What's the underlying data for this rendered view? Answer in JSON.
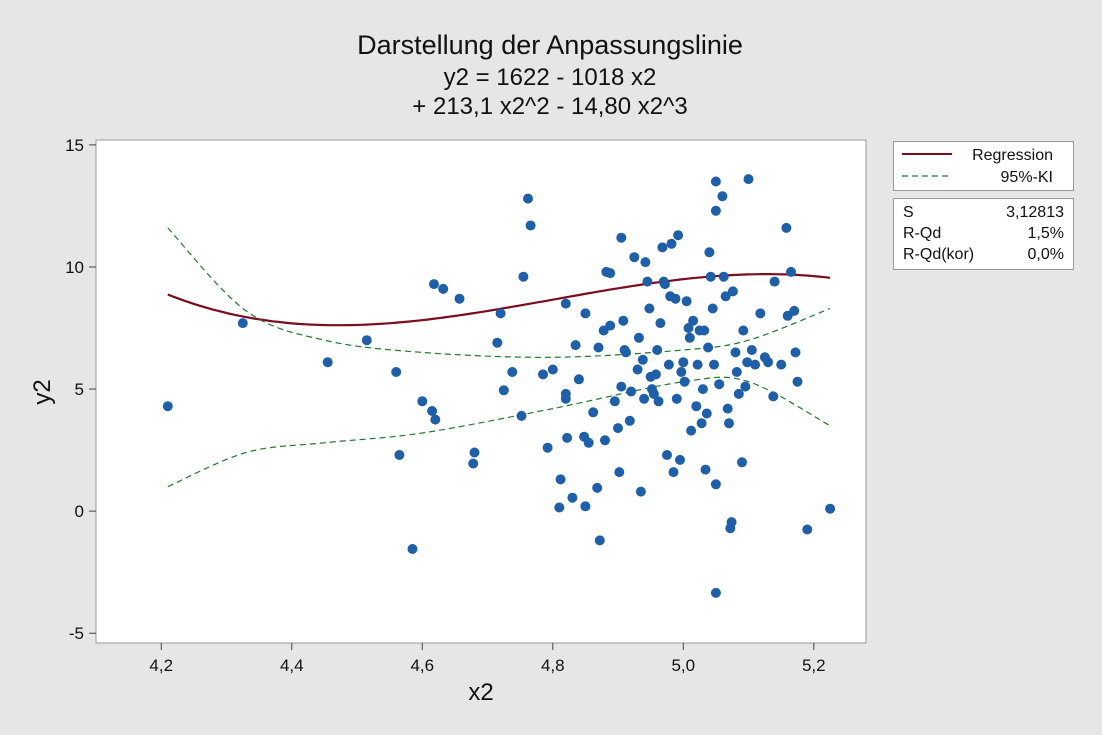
{
  "chart_data": {
    "type": "scatter",
    "title": "Darstellung der Anpassungslinie",
    "subtitle_lines": [
      "y2 = 1622 - 1018 x2",
      "+ 213,1 x2^2 - 14,80 x2^3"
    ],
    "xlabel": "x2",
    "ylabel": "y2",
    "xlim": [
      4.1,
      5.28
    ],
    "ylim": [
      -5.4,
      15.2
    ],
    "xticks": [
      4.2,
      4.4,
      4.6,
      4.8,
      5.0,
      5.2
    ],
    "xtick_labels": [
      "4,2",
      "4,4",
      "4,6",
      "4,8",
      "5,0",
      "5,2"
    ],
    "yticks": [
      -5,
      0,
      5,
      10,
      15
    ],
    "ytick_labels": [
      "-5",
      "0",
      "5",
      "10",
      "15"
    ],
    "grid": false,
    "legend_position": "right-top",
    "regression": {
      "name": "Regression",
      "color": "#7a0d1e",
      "coefficients": [
        1622,
        -1018,
        213.1,
        -14.8
      ],
      "x_range": [
        4.21,
        5.225
      ]
    },
    "confidence_interval": {
      "name": "95%-KI",
      "color": "#1f7a2e",
      "upper": [
        [
          4.21,
          11.6
        ],
        [
          4.33,
          8.2
        ],
        [
          4.45,
          7.0
        ],
        [
          4.6,
          6.5
        ],
        [
          4.8,
          6.3
        ],
        [
          5.0,
          6.6
        ],
        [
          5.1,
          7.0
        ],
        [
          5.225,
          8.3
        ]
      ],
      "lower": [
        [
          4.21,
          1.0
        ],
        [
          4.33,
          2.4
        ],
        [
          4.45,
          2.8
        ],
        [
          4.6,
          3.2
        ],
        [
          4.8,
          4.2
        ],
        [
          5.0,
          5.3
        ],
        [
          5.1,
          5.3
        ],
        [
          5.225,
          3.5
        ]
      ]
    },
    "marker_color": "#1f5fa8",
    "points": [
      [
        4.21,
        4.3
      ],
      [
        4.325,
        7.7
      ],
      [
        4.455,
        6.1
      ],
      [
        4.515,
        7.0
      ],
      [
        4.565,
        2.3
      ],
      [
        4.56,
        5.7
      ],
      [
        4.585,
        -1.55
      ],
      [
        4.6,
        4.5
      ],
      [
        4.615,
        4.1
      ],
      [
        4.618,
        9.3
      ],
      [
        4.62,
        3.75
      ],
      [
        4.632,
        9.1
      ],
      [
        4.657,
        8.7
      ],
      [
        4.68,
        2.4
      ],
      [
        4.678,
        1.95
      ],
      [
        4.715,
        6.9
      ],
      [
        4.72,
        8.1
      ],
      [
        4.725,
        4.95
      ],
      [
        4.738,
        5.7
      ],
      [
        4.752,
        3.9
      ],
      [
        4.755,
        9.6
      ],
      [
        4.762,
        12.8
      ],
      [
        4.766,
        11.7
      ],
      [
        4.785,
        5.6
      ],
      [
        4.792,
        2.6
      ],
      [
        4.8,
        5.8
      ],
      [
        4.81,
        0.15
      ],
      [
        4.812,
        1.3
      ],
      [
        4.82,
        8.5
      ],
      [
        4.82,
        4.8
      ],
      [
        4.82,
        4.6
      ],
      [
        4.822,
        3.0
      ],
      [
        4.83,
        0.55
      ],
      [
        4.835,
        6.8
      ],
      [
        4.84,
        5.4
      ],
      [
        4.848,
        3.05
      ],
      [
        4.85,
        8.1
      ],
      [
        4.85,
        0.2
      ],
      [
        4.855,
        2.8
      ],
      [
        4.862,
        4.05
      ],
      [
        4.868,
        0.95
      ],
      [
        4.87,
        6.7
      ],
      [
        4.872,
        -1.2
      ],
      [
        4.878,
        7.4
      ],
      [
        4.88,
        2.9
      ],
      [
        4.882,
        9.8
      ],
      [
        4.888,
        9.75
      ],
      [
        4.888,
        7.6
      ],
      [
        4.895,
        4.5
      ],
      [
        4.9,
        3.4
      ],
      [
        4.902,
        1.6
      ],
      [
        4.905,
        11.2
      ],
      [
        4.905,
        5.1
      ],
      [
        4.908,
        7.8
      ],
      [
        4.91,
        6.6
      ],
      [
        4.912,
        6.5
      ],
      [
        4.918,
        3.7
      ],
      [
        4.92,
        4.9
      ],
      [
        4.925,
        10.4
      ],
      [
        4.93,
        5.8
      ],
      [
        4.932,
        7.1
      ],
      [
        4.935,
        0.8
      ],
      [
        4.938,
        6.2
      ],
      [
        4.94,
        4.6
      ],
      [
        4.942,
        10.2
      ],
      [
        4.945,
        9.4
      ],
      [
        4.948,
        8.3
      ],
      [
        4.95,
        5.5
      ],
      [
        4.952,
        5.0
      ],
      [
        4.955,
        4.8
      ],
      [
        4.958,
        5.6
      ],
      [
        4.96,
        6.6
      ],
      [
        4.962,
        4.5
      ],
      [
        4.965,
        7.7
      ],
      [
        4.968,
        10.8
      ],
      [
        4.97,
        9.4
      ],
      [
        4.972,
        9.3
      ],
      [
        4.975,
        2.3
      ],
      [
        4.978,
        6.0
      ],
      [
        4.98,
        8.8
      ],
      [
        4.982,
        10.95
      ],
      [
        4.985,
        1.6
      ],
      [
        4.988,
        8.7
      ],
      [
        4.99,
        4.6
      ],
      [
        4.992,
        11.3
      ],
      [
        4.995,
        2.1
      ],
      [
        4.997,
        5.7
      ],
      [
        5.0,
        6.1
      ],
      [
        5.002,
        5.3
      ],
      [
        5.005,
        8.6
      ],
      [
        5.008,
        7.5
      ],
      [
        5.01,
        7.1
      ],
      [
        5.012,
        3.3
      ],
      [
        5.015,
        7.8
      ],
      [
        5.02,
        4.3
      ],
      [
        5.022,
        6.0
      ],
      [
        5.025,
        7.4
      ],
      [
        5.028,
        3.6
      ],
      [
        5.03,
        5.0
      ],
      [
        5.032,
        7.4
      ],
      [
        5.034,
        1.7
      ],
      [
        5.036,
        4.0
      ],
      [
        5.038,
        6.7
      ],
      [
        5.04,
        10.6
      ],
      [
        5.042,
        9.6
      ],
      [
        5.045,
        8.3
      ],
      [
        5.047,
        6.0
      ],
      [
        5.05,
        13.5
      ],
      [
        5.05,
        12.3
      ],
      [
        5.05,
        1.1
      ],
      [
        5.05,
        -3.35
      ],
      [
        5.055,
        5.2
      ],
      [
        5.06,
        12.9
      ],
      [
        5.062,
        9.6
      ],
      [
        5.065,
        8.8
      ],
      [
        5.068,
        4.2
      ],
      [
        5.07,
        3.6
      ],
      [
        5.072,
        -0.7
      ],
      [
        5.074,
        -0.45
      ],
      [
        5.076,
        9.0
      ],
      [
        5.08,
        6.5
      ],
      [
        5.082,
        5.7
      ],
      [
        5.085,
        4.8
      ],
      [
        5.09,
        2.0
      ],
      [
        5.092,
        7.4
      ],
      [
        5.095,
        5.1
      ],
      [
        5.098,
        6.1
      ],
      [
        5.1,
        13.6
      ],
      [
        5.105,
        6.6
      ],
      [
        5.11,
        6.0
      ],
      [
        5.118,
        8.1
      ],
      [
        5.125,
        6.3
      ],
      [
        5.13,
        6.1
      ],
      [
        5.138,
        4.7
      ],
      [
        5.14,
        9.4
      ],
      [
        5.15,
        6.0
      ],
      [
        5.158,
        11.6
      ],
      [
        5.16,
        8.0
      ],
      [
        5.165,
        9.8
      ],
      [
        5.17,
        8.2
      ],
      [
        5.172,
        6.5
      ],
      [
        5.175,
        5.3
      ],
      [
        5.19,
        -0.75
      ],
      [
        5.225,
        0.1
      ]
    ]
  },
  "stats": [
    {
      "label": "S",
      "value": "3,12813"
    },
    {
      "label": "R-Qd",
      "value": "1,5%"
    },
    {
      "label": "R-Qd(kor)",
      "value": "0,0%"
    }
  ]
}
